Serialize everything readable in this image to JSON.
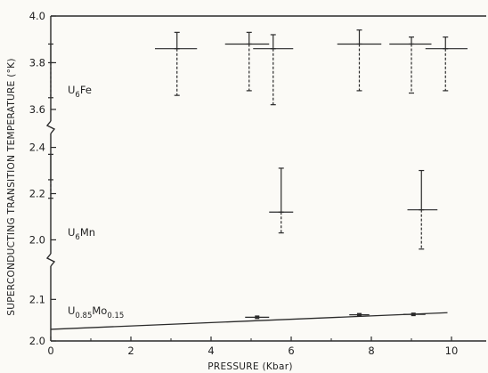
{
  "chart_data": {
    "type": "scatter",
    "xlabel": "PRESSURE (Kbar)",
    "ylabel": "SUPERCONDUCTING TRANSITION TEMPERATURE (°K)",
    "xlim": [
      0,
      11
    ],
    "xticks": [
      "0",
      "2",
      "4",
      "6",
      "8",
      "10"
    ],
    "grid": false,
    "panels": [
      {
        "compound": "U6Fe",
        "compound_main": "U",
        "compound_sub": "6",
        "compound_tail": "Fe",
        "ylim": [
          3.55,
          4.0
        ],
        "yticks": [
          "3.6",
          "3.8",
          "4.0"
        ],
        "points": [
          {
            "x": 0.0,
            "y": 3.8,
            "x_lo": 0.0,
            "x_hi": 0.0,
            "y_lo": 3.65,
            "y_hi": 3.88
          },
          {
            "x": 3.15,
            "y": 3.86,
            "x_lo": 2.6,
            "x_hi": 3.65,
            "y_lo": 3.66,
            "y_hi": 3.93
          },
          {
            "x": 4.95,
            "y": 3.88,
            "x_lo": 4.35,
            "x_hi": 5.45,
            "y_lo": 3.68,
            "y_hi": 3.93
          },
          {
            "x": 5.55,
            "y": 3.86,
            "x_lo": 5.05,
            "x_hi": 6.05,
            "y_lo": 3.62,
            "y_hi": 3.92
          },
          {
            "x": 7.7,
            "y": 3.88,
            "x_lo": 7.15,
            "x_hi": 8.25,
            "y_lo": 3.68,
            "y_hi": 3.94
          },
          {
            "x": 9.0,
            "y": 3.88,
            "x_lo": 8.45,
            "x_hi": 9.5,
            "y_lo": 3.67,
            "y_hi": 3.91
          },
          {
            "x": 9.85,
            "y": 3.86,
            "x_lo": 9.35,
            "x_hi": 10.4,
            "y_lo": 3.68,
            "y_hi": 3.91
          }
        ]
      },
      {
        "compound": "U6Mn",
        "compound_main": "U",
        "compound_sub": "6",
        "compound_tail": "Mn",
        "ylim": [
          1.94,
          2.46
        ],
        "yticks": [
          "2.0",
          "2.2",
          "2.4"
        ],
        "points": [
          {
            "x": 0.0,
            "y": 2.26,
            "x_lo": 0.0,
            "x_hi": 0.0,
            "y_lo": 2.18,
            "y_hi": 2.37
          },
          {
            "x": 5.75,
            "y": 2.12,
            "x_lo": 5.45,
            "x_hi": 6.05,
            "y_lo": 2.03,
            "y_hi": 2.31
          },
          {
            "x": 9.25,
            "y": 2.13,
            "x_lo": 8.9,
            "x_hi": 9.65,
            "y_lo": 1.96,
            "y_hi": 2.3
          }
        ]
      },
      {
        "compound": "U0.85Mo0.15",
        "compound_main": "U",
        "compound_sub": "0.85",
        "compound_tail": "Mo",
        "compound_sub2": "0.15",
        "ylim": [
          2.0,
          2.18
        ],
        "yticks": [
          "2.0",
          "2.1"
        ],
        "fit_line": {
          "x": [
            0.0,
            9.9
          ],
          "y": [
            2.028,
            2.068
          ]
        },
        "points": [
          {
            "x": 5.15,
            "y": 2.057,
            "x_lo": 4.85,
            "x_hi": 5.45
          },
          {
            "x": 7.7,
            "y": 2.063,
            "x_lo": 7.45,
            "x_hi": 7.95
          },
          {
            "x": 9.05,
            "y": 2.064,
            "x_lo": 8.8,
            "x_hi": 9.35
          }
        ]
      }
    ]
  }
}
